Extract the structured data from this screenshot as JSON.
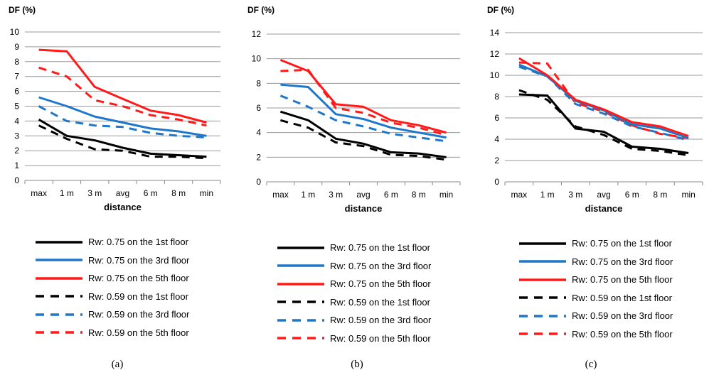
{
  "legend": [
    {
      "label": "Rw: 0.75 on the 1st floor",
      "color": "#000000",
      "dashed": false
    },
    {
      "label": "Rw: 0.75 on the 3rd floor",
      "color": "#1f77c9",
      "dashed": false
    },
    {
      "label": "Rw: 0.75 on the 5th floor",
      "color": "#ff1a1a",
      "dashed": false
    },
    {
      "label": "Rw: 0.59 on the 1st floor",
      "color": "#000000",
      "dashed": true
    },
    {
      "label": "Rw: 0.59 on the 3rd floor",
      "color": "#1f77c9",
      "dashed": true
    },
    {
      "label": "Rw: 0.59 on the 5th floor",
      "color": "#ff1a1a",
      "dashed": true
    }
  ],
  "chart_data": [
    {
      "type": "line",
      "caption": "(a)",
      "ylabel": "DF (%)",
      "xlabel": "distance",
      "categories": [
        "max",
        "1 m",
        "3 m",
        "avg",
        "6 m",
        "8 m",
        "min"
      ],
      "ylim": [
        0,
        10
      ],
      "yticks": [
        0,
        1,
        2,
        3,
        4,
        5,
        6,
        7,
        8,
        9,
        10
      ],
      "grid": true,
      "series": [
        {
          "name": "Rw: 0.75 on the 1st floor",
          "color": "#000000",
          "dashed": false,
          "values": [
            4.1,
            3.0,
            2.7,
            2.2,
            1.8,
            1.7,
            1.6
          ]
        },
        {
          "name": "Rw: 0.75 on the 3rd floor",
          "color": "#1f77c9",
          "dashed": false,
          "values": [
            5.6,
            5.0,
            4.3,
            3.9,
            3.5,
            3.3,
            3.0
          ]
        },
        {
          "name": "Rw: 0.75 on the 5th floor",
          "color": "#ff1a1a",
          "dashed": false,
          "values": [
            8.8,
            8.7,
            6.3,
            5.5,
            4.7,
            4.4,
            3.9
          ]
        },
        {
          "name": "Rw: 0.59 on the 1st floor",
          "color": "#000000",
          "dashed": true,
          "values": [
            3.7,
            2.8,
            2.1,
            2.0,
            1.6,
            1.6,
            1.5
          ]
        },
        {
          "name": "Rw: 0.59 on the 3rd floor",
          "color": "#1f77c9",
          "dashed": true,
          "values": [
            5.0,
            4.0,
            3.7,
            3.6,
            3.2,
            3.0,
            2.9
          ]
        },
        {
          "name": "Rw: 0.59 on the 5th floor",
          "color": "#ff1a1a",
          "dashed": true,
          "values": [
            7.6,
            7.0,
            5.4,
            5.0,
            4.4,
            4.1,
            3.7
          ]
        }
      ]
    },
    {
      "type": "line",
      "caption": "(b)",
      "ylabel": "DF (%)",
      "xlabel": "distance",
      "categories": [
        "max",
        "1 m",
        "3 m",
        "avg",
        "6 m",
        "8 m",
        "min"
      ],
      "ylim": [
        0,
        12
      ],
      "yticks": [
        0,
        2,
        4,
        6,
        8,
        10,
        12
      ],
      "grid": true,
      "series": [
        {
          "name": "Rw: 0.75 on the 1st floor",
          "color": "#000000",
          "dashed": false,
          "values": [
            5.7,
            5.0,
            3.5,
            3.1,
            2.4,
            2.3,
            2.0
          ]
        },
        {
          "name": "Rw: 0.75 on the 3rd floor",
          "color": "#1f77c9",
          "dashed": false,
          "values": [
            7.9,
            7.7,
            5.5,
            5.1,
            4.4,
            4.0,
            3.6
          ]
        },
        {
          "name": "Rw: 0.75 on the 5th floor",
          "color": "#ff1a1a",
          "dashed": false,
          "values": [
            9.9,
            9.0,
            6.3,
            6.1,
            5.0,
            4.6,
            4.0
          ]
        },
        {
          "name": "Rw: 0.59 on the 1st floor",
          "color": "#000000",
          "dashed": true,
          "values": [
            5.0,
            4.4,
            3.2,
            2.9,
            2.2,
            2.1,
            1.8
          ]
        },
        {
          "name": "Rw: 0.59 on the 3rd floor",
          "color": "#1f77c9",
          "dashed": true,
          "values": [
            7.0,
            6.1,
            5.0,
            4.5,
            3.9,
            3.6,
            3.3
          ]
        },
        {
          "name": "Rw: 0.59 on the 5th floor",
          "color": "#ff1a1a",
          "dashed": true,
          "values": [
            9.0,
            9.1,
            6.0,
            5.6,
            4.8,
            4.4,
            3.8
          ]
        }
      ]
    },
    {
      "type": "line",
      "caption": "(c)",
      "ylabel": "DF (%)",
      "xlabel": "distance",
      "categories": [
        "max",
        "1 m",
        "3 m",
        "avg",
        "6 m",
        "8 m",
        "min"
      ],
      "ylim": [
        0,
        14
      ],
      "yticks": [
        0,
        2,
        4,
        6,
        8,
        10,
        12,
        14
      ],
      "grid": true,
      "series": [
        {
          "name": "Rw: 0.75 on the 1st floor",
          "color": "#000000",
          "dashed": false,
          "values": [
            8.2,
            8.1,
            5.0,
            4.7,
            3.3,
            3.1,
            2.7
          ]
        },
        {
          "name": "Rw: 0.75 on the 3rd floor",
          "color": "#1f77c9",
          "dashed": false,
          "values": [
            11.0,
            9.9,
            7.6,
            6.7,
            5.4,
            5.0,
            4.1
          ]
        },
        {
          "name": "Rw: 0.75 on the 5th floor",
          "color": "#ff1a1a",
          "dashed": false,
          "values": [
            11.6,
            10.0,
            7.7,
            6.8,
            5.6,
            5.2,
            4.3
          ]
        },
        {
          "name": "Rw: 0.59 on the 1st floor",
          "color": "#000000",
          "dashed": true,
          "values": [
            8.6,
            7.7,
            5.2,
            4.4,
            3.1,
            2.9,
            2.5
          ]
        },
        {
          "name": "Rw: 0.59 on the 3rd floor",
          "color": "#1f77c9",
          "dashed": true,
          "values": [
            10.8,
            9.9,
            7.3,
            6.4,
            5.2,
            4.6,
            3.9
          ]
        },
        {
          "name": "Rw: 0.59 on the 5th floor",
          "color": "#ff1a1a",
          "dashed": true,
          "values": [
            11.2,
            11.1,
            7.4,
            6.6,
            5.3,
            4.5,
            4.1
          ]
        }
      ]
    }
  ]
}
